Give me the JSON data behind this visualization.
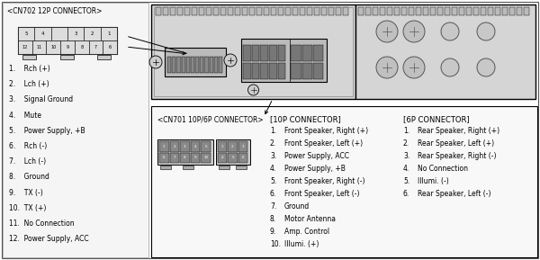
{
  "bg_color": "#ffffff",
  "cn702_title": "<CN702 12P CONNECTOR>",
  "cn702_pins": [
    "1.    Rch (+)",
    "2.    Lch (+)",
    "3.    Signal Ground",
    "4.    Mute",
    "5.    Power Supply, +B",
    "6.    Rch (-)",
    "7.    Lch (-)",
    "8.    Ground",
    "9.    TX (-)",
    "10.  TX (+)",
    "11.  No Connection",
    "12.  Power Supply, ACC"
  ],
  "cn701_title": "<CN701 10P/6P CONNECTOR>",
  "cn10p_title": "[10P CONNECTOR]",
  "cn10p_pins": [
    "Front Speaker, Right (+)",
    "Front Speaker, Left (+)",
    "Power Supply, ACC",
    "Power Supply, +B",
    "Front Speaker, Right (-)",
    "Front Speaker, Left (-)",
    "Ground",
    "Motor Antenna",
    "Amp. Control",
    "Illumi. (+)"
  ],
  "cn6p_title": "[6P CONNECTOR]",
  "cn6p_pins": [
    "Rear Speaker, Right (+)",
    "Rear Speaker, Left (+)",
    "Rear Speaker, Right (-)",
    "No Connection",
    "Illumi. (-)",
    "Rear Speaker, Left (-)"
  ],
  "cn702_top_pins": [
    "5",
    "4",
    "",
    "3",
    "2",
    "1"
  ],
  "cn702_bot_pins": [
    "12",
    "11",
    "10",
    "9",
    "8",
    "7",
    "6"
  ]
}
